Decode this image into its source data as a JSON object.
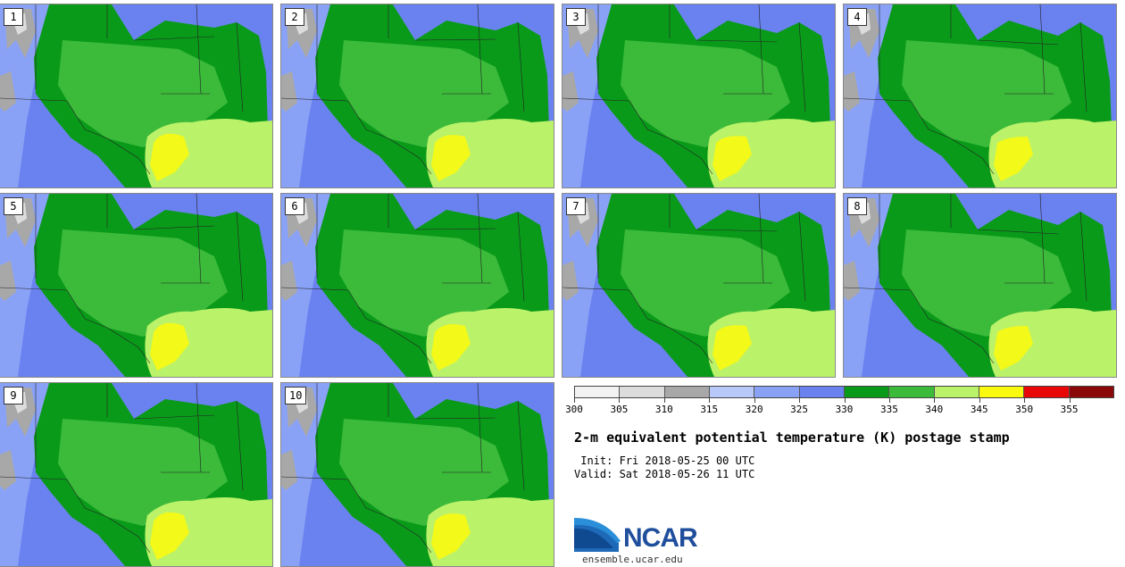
{
  "title": "2-m equivalent potential temperature (K) postage stamp",
  "init": " Init: Fri 2018-05-25 00 UTC",
  "valid": "Valid: Sat 2018-05-26 11 UTC",
  "logo": {
    "text": "NCAR",
    "website": "ensemble.ucar.edu"
  },
  "panels": [
    "1",
    "2",
    "3",
    "4",
    "5",
    "6",
    "7",
    "8",
    "9",
    "10"
  ],
  "colorbar": {
    "colors": [
      "#f2f2f2",
      "#dcdcdc",
      "#a8a8a8",
      "#b8c8f8",
      "#8aa2f6",
      "#6a82f0",
      "#0a9a1a",
      "#3cba3a",
      "#baf26a",
      "#fafa10",
      "#e80808",
      "#8a0808"
    ],
    "labels": [
      "300",
      "305",
      "310",
      "315",
      "320",
      "325",
      "330",
      "335",
      "340",
      "345",
      "350",
      "355"
    ]
  },
  "map_colors": {
    "cool": "#6a82f0",
    "cool_light": "#8aa2f6",
    "mountain": "#a8a8a8",
    "mountain_light": "#dcdcdc",
    "dark_green": "#0a9a1a",
    "mid_green": "#3cba3a",
    "gulf": "#baf26a",
    "warm": "#fafa10"
  }
}
